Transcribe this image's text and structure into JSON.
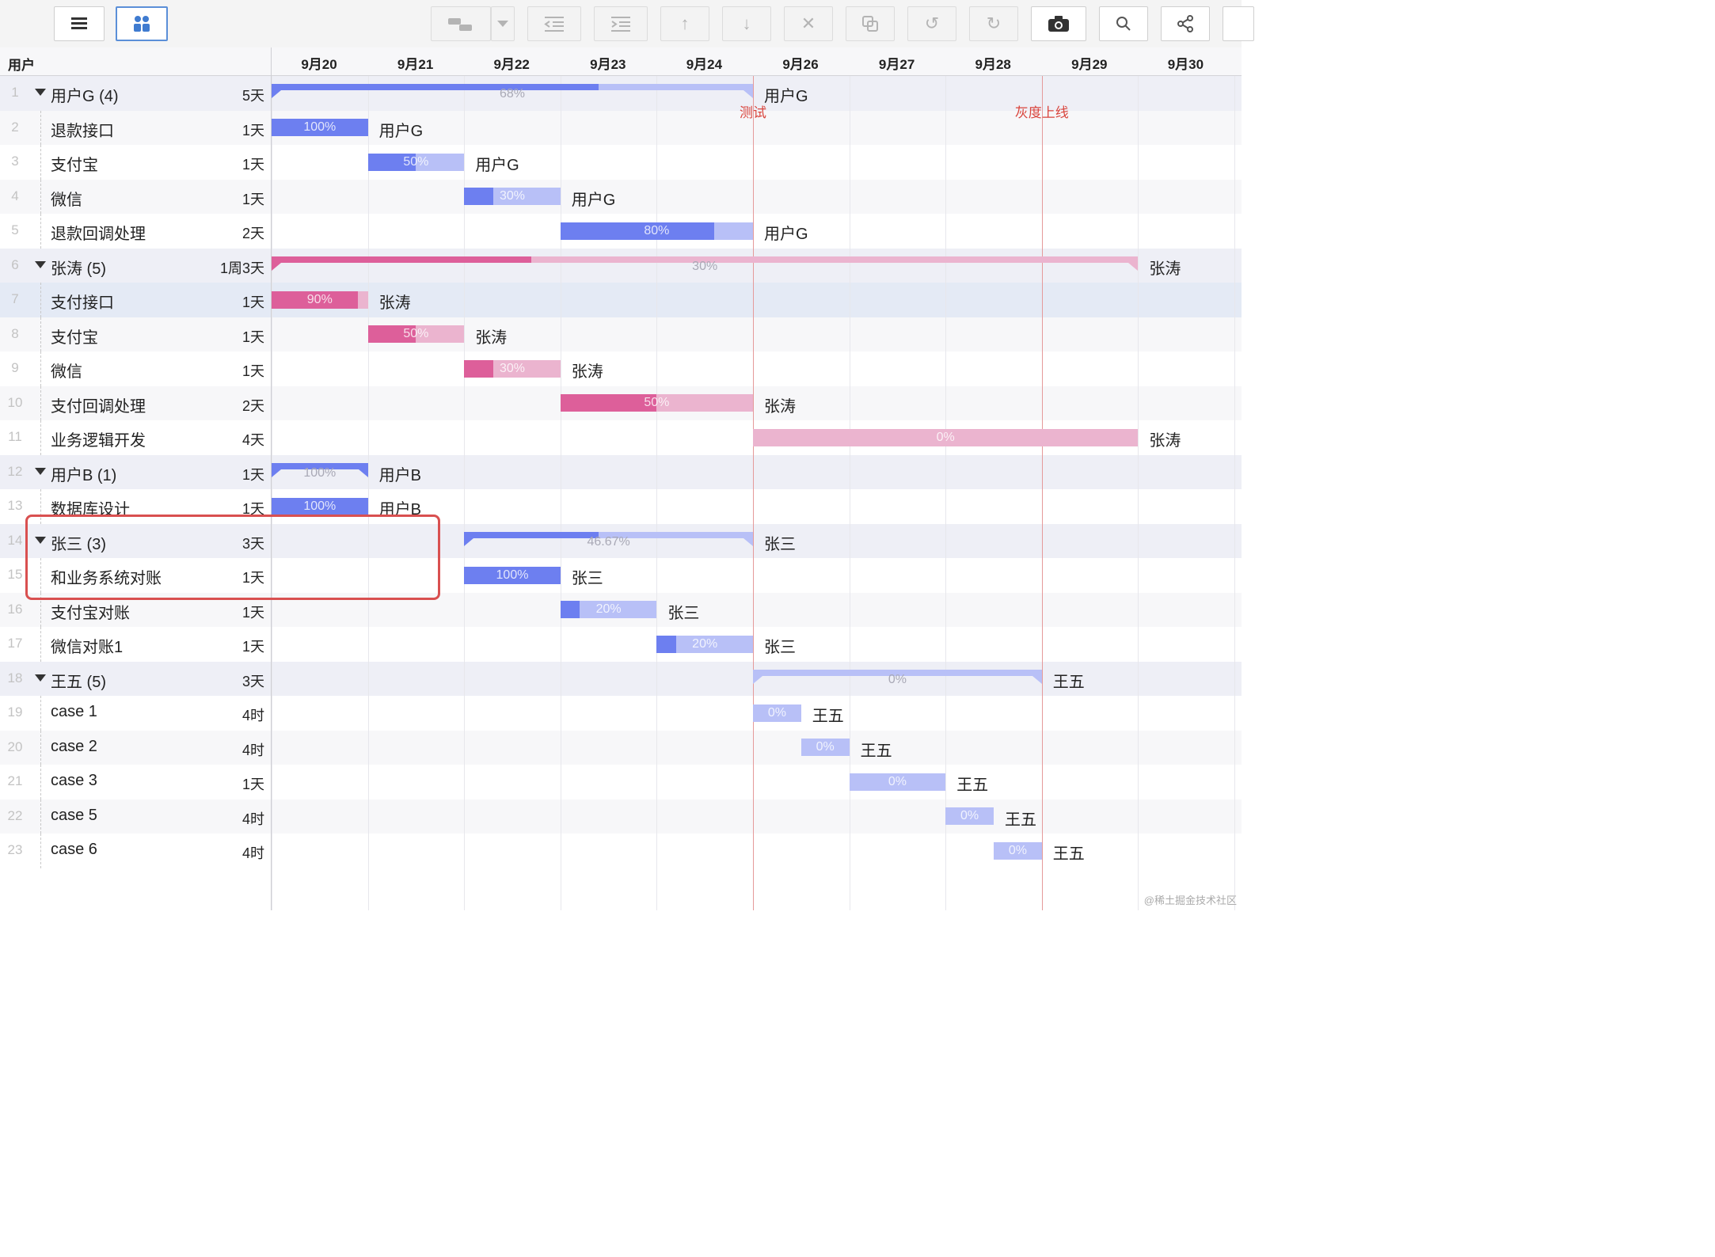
{
  "header": {
    "user_col": "用户",
    "dates": [
      "9月20",
      "9月21",
      "9月22",
      "9月23",
      "9月24",
      "9月26",
      "9月27",
      "9月28",
      "9月29",
      "9月30"
    ]
  },
  "markers": [
    {
      "label": "测试",
      "color": "#d9453d"
    },
    {
      "label": "灰度上线",
      "color": "#d9453d"
    }
  ],
  "rows": [
    {
      "num": "1",
      "name": "用户G (4)",
      "dur": "5天",
      "group": true,
      "bar_pct": "68%",
      "progress": 0.68,
      "bar_label": "用户G"
    },
    {
      "num": "2",
      "name": "退款接口",
      "dur": "1天",
      "bar_pct": "100%",
      "progress": 1.0,
      "bar_label": "用户G"
    },
    {
      "num": "3",
      "name": "支付宝",
      "dur": "1天",
      "bar_pct": "50%",
      "progress": 0.5,
      "bar_label": "用户G"
    },
    {
      "num": "4",
      "name": "微信",
      "dur": "1天",
      "bar_pct": "30%",
      "progress": 0.3,
      "bar_label": "用户G"
    },
    {
      "num": "5",
      "name": "退款回调处理",
      "dur": "2天",
      "bar_pct": "80%",
      "progress": 0.8,
      "bar_label": "用户G"
    },
    {
      "num": "6",
      "name": "张涛 (5)",
      "dur": "1周3天",
      "group": true,
      "bar_pct": "30%",
      "progress": 0.3,
      "bar_label": "张涛"
    },
    {
      "num": "7",
      "name": "支付接口",
      "dur": "1天",
      "bar_pct": "90%",
      "progress": 0.9,
      "bar_label": "张涛",
      "selected": true
    },
    {
      "num": "8",
      "name": "支付宝",
      "dur": "1天",
      "bar_pct": "50%",
      "progress": 0.5,
      "bar_label": "张涛"
    },
    {
      "num": "9",
      "name": "微信",
      "dur": "1天",
      "bar_pct": "30%",
      "progress": 0.3,
      "bar_label": "张涛"
    },
    {
      "num": "10",
      "name": "支付回调处理",
      "dur": "2天",
      "bar_pct": "50%",
      "progress": 0.5,
      "bar_label": "张涛"
    },
    {
      "num": "11",
      "name": "业务逻辑开发",
      "dur": "4天",
      "bar_pct": "0%",
      "progress": 0.0,
      "bar_label": "张涛"
    },
    {
      "num": "12",
      "name": "用户B (1)",
      "dur": "1天",
      "group": true,
      "bar_pct": "100%",
      "progress": 1.0,
      "bar_label": "用户B"
    },
    {
      "num": "13",
      "name": "数据库设计",
      "dur": "1天",
      "bar_pct": "100%",
      "progress": 1.0,
      "bar_label": "用户B"
    },
    {
      "num": "14",
      "name": "张三 (3)",
      "dur": "3天",
      "group": true,
      "bar_pct": "46.67%",
      "progress": 0.4667,
      "bar_label": "张三"
    },
    {
      "num": "15",
      "name": "和业务系统对账",
      "dur": "1天",
      "bar_pct": "100%",
      "progress": 1.0,
      "bar_label": "张三"
    },
    {
      "num": "16",
      "name": "支付宝对账",
      "dur": "1天",
      "bar_pct": "20%",
      "progress": 0.2,
      "bar_label": "张三"
    },
    {
      "num": "17",
      "name": "微信对账1",
      "dur": "1天",
      "bar_pct": "20%",
      "progress": 0.2,
      "bar_label": "张三"
    },
    {
      "num": "18",
      "name": "王五 (5)",
      "dur": "3天",
      "group": true,
      "bar_pct": "0%",
      "progress": 0.0,
      "bar_label": "王五"
    },
    {
      "num": "19",
      "name": "case 1",
      "dur": "4时",
      "bar_pct": "0%",
      "progress": 0.0,
      "bar_label": "王五"
    },
    {
      "num": "20",
      "name": "case 2",
      "dur": "4时",
      "bar_pct": "0%",
      "progress": 0.0,
      "bar_label": "王五"
    },
    {
      "num": "21",
      "name": "case 3",
      "dur": "1天",
      "bar_pct": "0%",
      "progress": 0.0,
      "bar_label": "王五"
    },
    {
      "num": "22",
      "name": "case 5",
      "dur": "4时",
      "bar_pct": "0%",
      "progress": 0.0,
      "bar_label": "王五"
    },
    {
      "num": "23",
      "name": "case 6",
      "dur": "4时",
      "bar_pct": "0%",
      "progress": 0.0,
      "bar_label": "王五"
    }
  ],
  "colors": {
    "blue_fill": "#6d7ff0",
    "blue_light": "#b8c0f7",
    "pink_fill": "#dd5f9a",
    "pink_light": "#ebb4cf"
  },
  "toolbar_icons": [
    "list-view-icon",
    "user-group-icon",
    "task-link-icon",
    "dropdown-arrow-icon",
    "outdent-icon",
    "indent-icon",
    "move-up-icon",
    "move-down-icon",
    "delete-icon",
    "copy-icon",
    "undo-icon",
    "redo-icon",
    "camera-icon",
    "search-icon",
    "share-icon"
  ],
  "watermark": "@稀土掘金技术社区"
}
